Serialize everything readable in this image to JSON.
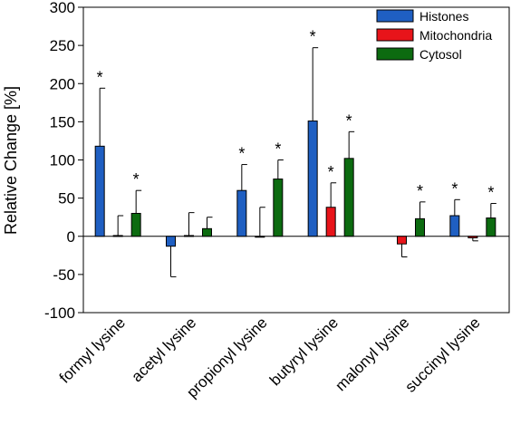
{
  "chart_data": {
    "type": "bar",
    "ylabel": "Relative Change [%]",
    "ylim": [
      -100,
      300
    ],
    "yticks": [
      -100,
      -50,
      0,
      50,
      100,
      150,
      200,
      250,
      300
    ],
    "categories": [
      "formyl lysine",
      "acetyl lysine",
      "propionyl lysine",
      "butyryl lysine",
      "malonyl lysine",
      "succinyl lysine"
    ],
    "legend_position": "top-right",
    "significance_marker": "*",
    "series": [
      {
        "name": "Histones",
        "color": "#1f5fc2",
        "values": [
          118,
          -13,
          60,
          151,
          null,
          27
        ],
        "errors": [
          76,
          40,
          34,
          96,
          null,
          21
        ],
        "significant": [
          true,
          false,
          true,
          true,
          false,
          true
        ]
      },
      {
        "name": "Mitochondria",
        "color": "#e8141a",
        "values": [
          1,
          1,
          0,
          38,
          -10,
          -2
        ],
        "errors": [
          26,
          30,
          38,
          32,
          17,
          4
        ],
        "significant": [
          false,
          false,
          false,
          true,
          false,
          false
        ]
      },
      {
        "name": "Cytosol",
        "color": "#0c6b10",
        "values": [
          30,
          10,
          75,
          102,
          23,
          24
        ],
        "errors": [
          30,
          15,
          25,
          35,
          22,
          19
        ],
        "significant": [
          true,
          false,
          true,
          true,
          true,
          true
        ]
      }
    ]
  }
}
